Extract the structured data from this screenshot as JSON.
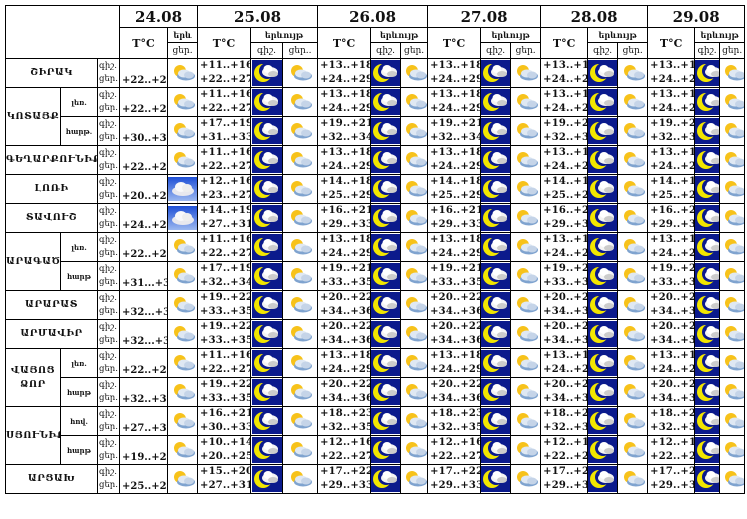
{
  "header": {
    "dates": [
      "24.08",
      "25.08",
      "26.08",
      "27.08",
      "28.08",
      "29.08"
    ],
    "temp_label": "T°C",
    "phenomenon_label": "երևույթ",
    "phenomenon_short": "երև",
    "night_label": "գիշ.",
    "day_label": "ցեր.",
    "day_label_trunc": "ցեր.."
  },
  "row_labels": {
    "night": "գիշ.",
    "day": "ցեր."
  },
  "colors": {
    "night_bg": "#0b1a8c",
    "cloudy_bg": "#3d6fe0",
    "moon": "#f2e600"
  },
  "rows": [
    {
      "region": "ՇԻՐԱԿ",
      "sub": null,
      "d24": "+22..+27",
      "icon24": "partly-cloudy",
      "d25": [
        "+11..+16",
        "+22..+27"
      ],
      "d26": [
        "+13..+18",
        "+24..+29"
      ]
    },
    {
      "region": "ԿՈՏԱՅՔ",
      "sub": "լեռ.",
      "span": 2,
      "d24": "+22..+27",
      "icon24": "partly-cloudy",
      "d25": [
        "+11..+16",
        "+22..+27"
      ],
      "d26": [
        "+13..+18",
        "+24..+29"
      ]
    },
    {
      "region": null,
      "sub": "հարթ.",
      "d24": "+30..+32",
      "icon24": "partly-cloudy",
      "d25": [
        "+17..+19",
        "+31..+33"
      ],
      "d26": [
        "+19..+21",
        "+32..+34"
      ]
    },
    {
      "region": "ԳԵՂԱՐՔՈՒՆԻՔ",
      "sub": null,
      "d24": "+22..+27",
      "icon24": "partly-cloudy",
      "d25": [
        "+11..+16",
        "+22..+27"
      ],
      "d26": [
        "+13..+18",
        "+24..+29"
      ]
    },
    {
      "region": "ԼՈՌԻ",
      "sub": null,
      "d24": "+20..+25",
      "icon24": "cloudy",
      "d25": [
        "+12..+16",
        "+23..+27"
      ],
      "d26": [
        "+14..+18",
        "+25..+29"
      ]
    },
    {
      "region": "ՏԱՎՈՒՇ",
      "sub": null,
      "d24": "+24..+28",
      "icon24": "cloudy",
      "d25": [
        "+14..+19",
        "+27..+31"
      ],
      "d26": [
        "+16..+21",
        "+29..+33"
      ]
    },
    {
      "region": "ԱՐԱԳԱԾՈՏՆ",
      "sub": "լեռ.",
      "span": 2,
      "d24": "+22..+27",
      "icon24": "partly-cloudy",
      "d25": [
        "+11..+16",
        "+22..+27"
      ],
      "d26": [
        "+13..+18",
        "+24..+29"
      ]
    },
    {
      "region": null,
      "sub": "հարթ",
      "d24": "+31...+33",
      "icon24": "partly-cloudy",
      "d25": [
        "+17..+19",
        "+32..+34"
      ],
      "d26": [
        "+19..+21",
        "+33..+35"
      ]
    },
    {
      "region": "ԱՐԱՐԱՏ",
      "sub": null,
      "d24": "+32...+34",
      "icon24": "partly-cloudy",
      "d25": [
        "+19..+22",
        "+33..+35"
      ],
      "d26": [
        "+20..+22",
        "+34..+36"
      ]
    },
    {
      "region": "ԱՐՄԱՎԻՐ",
      "sub": null,
      "d24": "+32...+34",
      "icon24": "partly-cloudy",
      "d25": [
        "+19..+22",
        "+33..+35"
      ],
      "d26": [
        "+20..+22",
        "+34..+36"
      ]
    },
    {
      "region": "ՎԱՅՈՑ ՁՈՐ",
      "sub": "լեռ.",
      "span": 2,
      "d24": "+22..+27",
      "icon24": "partly-cloudy",
      "d25": [
        "+11..+16",
        "+22..+27"
      ],
      "d26": [
        "+13..+18",
        "+24..+29"
      ]
    },
    {
      "region": null,
      "sub": "հարթ",
      "d24": "+32..+34",
      "icon24": "partly-cloudy",
      "d25": [
        "+19..+22",
        "+33..+35"
      ],
      "d26": [
        "+20..+22",
        "+34..+36"
      ]
    },
    {
      "region": "ՍՅՈՒՆԻՔ",
      "sub": "հով.",
      "span": 2,
      "d24": "+27..+30",
      "icon24": "partly-cloudy",
      "d25": [
        "+16..+21",
        "+30..+33"
      ],
      "d26": [
        "+18..+23",
        "+32..+35"
      ]
    },
    {
      "region": null,
      "sub": "հարթ",
      "d24": "+19..+23",
      "icon24": "partly-cloudy",
      "d25": [
        "+10..+14",
        "+20..+25"
      ],
      "d26": [
        "+12..+16",
        "+22..+27"
      ]
    },
    {
      "region": "ԱՐՑԱԽ",
      "sub": null,
      "d24": "+25..+29",
      "icon24": "partly-cloudy",
      "d25": [
        "+15..+20",
        "+27..+31"
      ],
      "d26": [
        "+17..+22",
        "+29..+33"
      ]
    }
  ]
}
